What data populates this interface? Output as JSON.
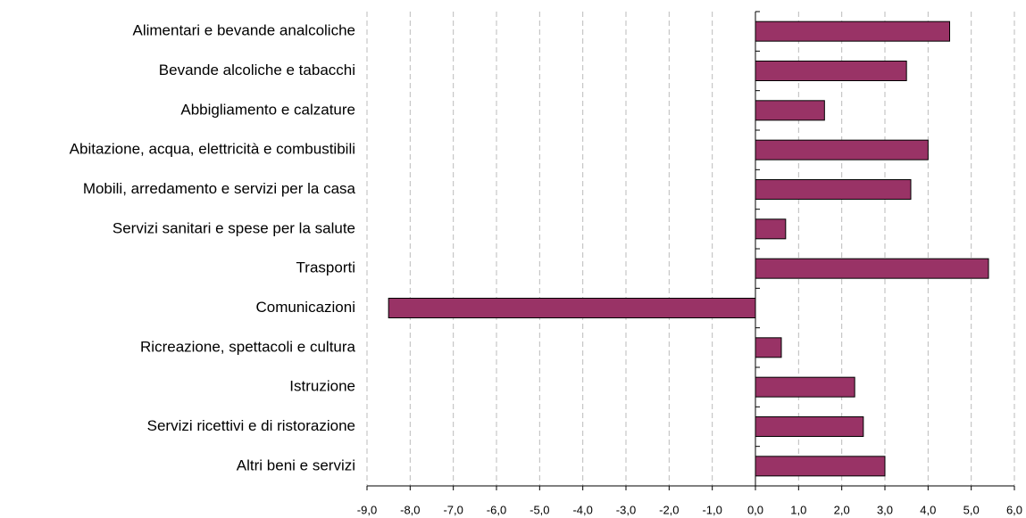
{
  "chart_data": {
    "type": "bar",
    "orientation": "horizontal",
    "categories": [
      "Alimentari e bevande analcoliche",
      "Bevande alcoliche e tabacchi",
      "Abbigliamento e calzature",
      "Abitazione, acqua, elettricità e combustibili",
      "Mobili, arredamento e servizi per la casa",
      "Servizi sanitari e spese per la salute",
      "Trasporti",
      "Comunicazioni",
      "Ricreazione, spettacoli e cultura",
      "Istruzione",
      "Servizi ricettivi e di ristorazione",
      "Altri beni e servizi"
    ],
    "values": [
      4.5,
      3.5,
      1.6,
      4.0,
      3.6,
      0.7,
      5.4,
      -8.5,
      0.6,
      2.3,
      2.5,
      3.0
    ],
    "color": "#993366",
    "xlim": [
      -9,
      6
    ],
    "xticks": [
      {
        "value": -9,
        "label": "-9,0"
      },
      {
        "value": -8,
        "label": "-8,0"
      },
      {
        "value": -7,
        "label": "-7,0"
      },
      {
        "value": -6,
        "label": "-6,0"
      },
      {
        "value": -5,
        "label": "-5,0"
      },
      {
        "value": -4,
        "label": "-4,0"
      },
      {
        "value": -3,
        "label": "-3,0"
      },
      {
        "value": -2,
        "label": "-2,0"
      },
      {
        "value": -1,
        "label": "-1,0"
      },
      {
        "value": 0,
        "label": "0,0"
      },
      {
        "value": 1,
        "label": "1,0"
      },
      {
        "value": 2,
        "label": "2,0"
      },
      {
        "value": 3,
        "label": "3,0"
      },
      {
        "value": 4,
        "label": "4,0"
      },
      {
        "value": 5,
        "label": "5,0"
      },
      {
        "value": 6,
        "label": "6,0"
      }
    ],
    "grid": true
  }
}
